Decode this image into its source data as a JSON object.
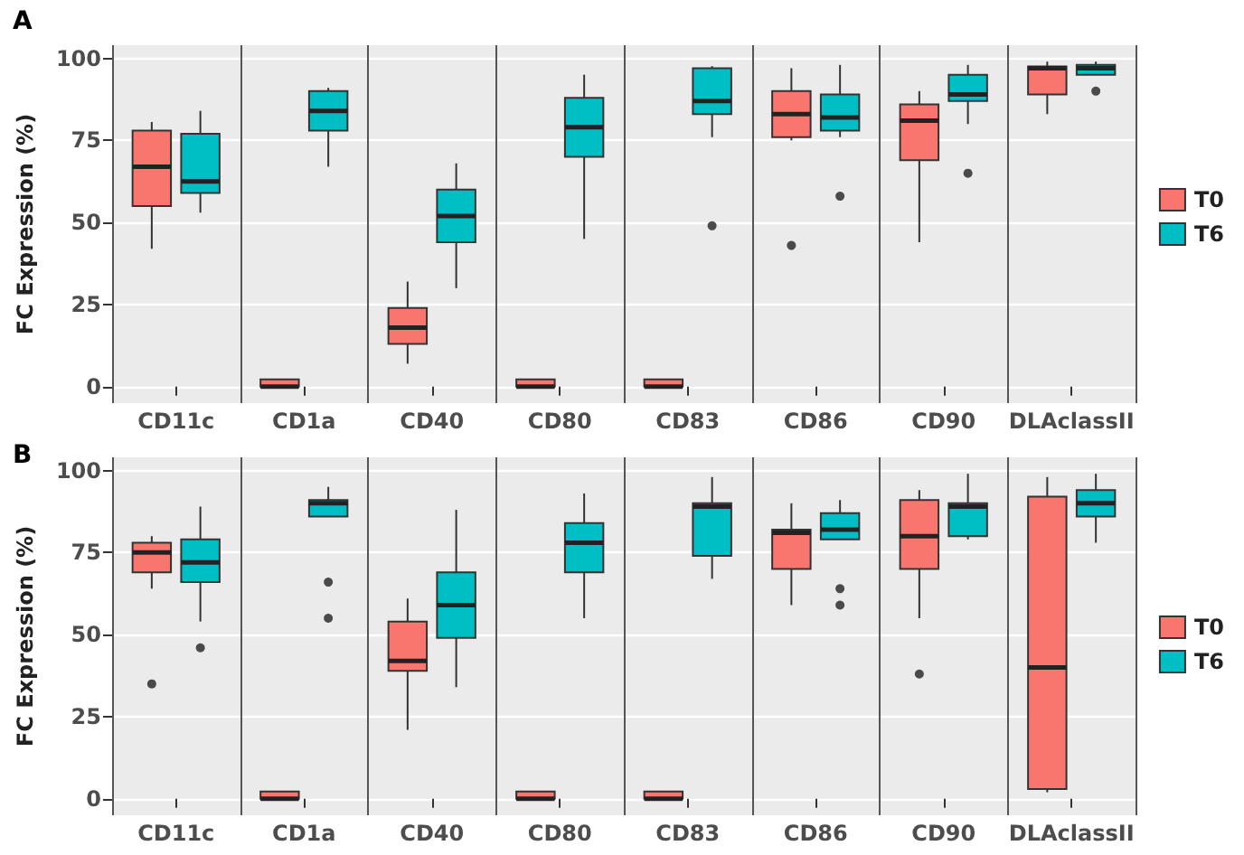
{
  "chart_data": [
    {
      "type": "box",
      "title": "A",
      "ylabel": "FC Expression (%)",
      "categories": [
        "CD11c",
        "CD1a",
        "CD40",
        "CD80",
        "CD83",
        "CD86",
        "CD90",
        "DLAclassII"
      ],
      "ylim": [
        -5,
        104
      ],
      "yticks": [
        0,
        25,
        50,
        75,
        100
      ],
      "grid": true,
      "legend": "right",
      "series": [
        {
          "name": "T0",
          "color": "#f8766d",
          "boxes": [
            {
              "low": 42,
              "q1": 55,
              "median": 67,
              "q3": 78,
              "high": 80.6
            },
            {
              "low": 0,
              "q1": 0,
              "median": 0,
              "q3": 0,
              "high": 0
            },
            {
              "low": 7,
              "q1": 13,
              "median": 18,
              "q3": 24,
              "high": 32
            },
            {
              "low": 0,
              "q1": 0,
              "median": 0,
              "q3": 0,
              "high": 0
            },
            {
              "low": 0,
              "q1": 0,
              "median": 0,
              "q3": 0,
              "high": 0
            },
            {
              "low": 75,
              "q1": 76,
              "median": 83,
              "q3": 90,
              "high": 97,
              "outliers": [
                43
              ]
            },
            {
              "low": 44,
              "q1": 69,
              "median": 81,
              "q3": 86,
              "high": 90
            },
            {
              "low": 83,
              "q1": 89,
              "median": 97,
              "q3": 97.5,
              "high": 99
            }
          ]
        },
        {
          "name": "T6",
          "color": "#00bfc4",
          "boxes": [
            {
              "low": 53,
              "q1": 59,
              "median": 62.5,
              "q3": 77,
              "high": 84
            },
            {
              "low": 67,
              "q1": 78,
              "median": 84,
              "q3": 90,
              "high": 91
            },
            {
              "low": 30,
              "q1": 44,
              "median": 52,
              "q3": 60,
              "high": 68
            },
            {
              "low": 45,
              "q1": 70,
              "median": 79,
              "q3": 88,
              "high": 95
            },
            {
              "low": 76,
              "q1": 83,
              "median": 87,
              "q3": 97,
              "high": 97.6,
              "outliers": [
                49
              ]
            },
            {
              "low": 76,
              "q1": 78,
              "median": 82,
              "q3": 89,
              "high": 98,
              "outliers": [
                58
              ]
            },
            {
              "low": 80,
              "q1": 87,
              "median": 89,
              "q3": 95,
              "high": 98,
              "outliers": [
                65
              ]
            },
            {
              "low": 95,
              "q1": 95,
              "median": 97,
              "q3": 98,
              "high": 99,
              "outliers": [
                90
              ]
            }
          ]
        }
      ]
    },
    {
      "type": "box",
      "title": "B",
      "ylabel": "FC Expression (%)",
      "categories": [
        "CD11c",
        "CD1a",
        "CD40",
        "CD80",
        "CD83",
        "CD86",
        "CD90",
        "DLAclassII"
      ],
      "ylim": [
        -5,
        104
      ],
      "yticks": [
        0,
        25,
        50,
        75,
        100
      ],
      "grid": true,
      "legend": "right",
      "series": [
        {
          "name": "T0",
          "color": "#f8766d",
          "boxes": [
            {
              "low": 64,
              "q1": 69,
              "median": 75,
              "q3": 78,
              "high": 80,
              "outliers": [
                35
              ]
            },
            {
              "low": 0,
              "q1": 0,
              "median": 0,
              "q3": 0,
              "high": 0
            },
            {
              "low": 21,
              "q1": 39,
              "median": 42,
              "q3": 54,
              "high": 61
            },
            {
              "low": 0,
              "q1": 0,
              "median": 0,
              "q3": 0,
              "high": 0
            },
            {
              "low": 0,
              "q1": 0,
              "median": 0,
              "q3": 0,
              "high": 0
            },
            {
              "low": 59,
              "q1": 70,
              "median": 81,
              "q3": 82,
              "high": 90
            },
            {
              "low": 55,
              "q1": 70,
              "median": 80,
              "q3": 91,
              "high": 94,
              "outliers": [
                38
              ]
            },
            {
              "low": 2,
              "q1": 3,
              "median": 40,
              "q3": 92,
              "high": 98
            }
          ]
        },
        {
          "name": "T6",
          "color": "#00bfc4",
          "boxes": [
            {
              "low": 54,
              "q1": 66,
              "median": 72,
              "q3": 79,
              "high": 89,
              "outliers": [
                46
              ]
            },
            {
              "low": 86,
              "q1": 86,
              "median": 90,
              "q3": 91,
              "high": 95,
              "outliers": [
                66,
                55
              ]
            },
            {
              "low": 34,
              "q1": 49,
              "median": 59,
              "q3": 69,
              "high": 88
            },
            {
              "low": 55,
              "q1": 69,
              "median": 78,
              "q3": 84,
              "high": 93
            },
            {
              "low": 67,
              "q1": 74,
              "median": 89,
              "q3": 90,
              "high": 98
            },
            {
              "low": 79,
              "q1": 79,
              "median": 82,
              "q3": 87,
              "high": 91,
              "outliers": [
                64,
                59
              ]
            },
            {
              "low": 79,
              "q1": 80,
              "median": 89,
              "q3": 90,
              "high": 99
            },
            {
              "low": 78,
              "q1": 86,
              "median": 90,
              "q3": 94,
              "high": 99
            }
          ]
        }
      ]
    }
  ]
}
